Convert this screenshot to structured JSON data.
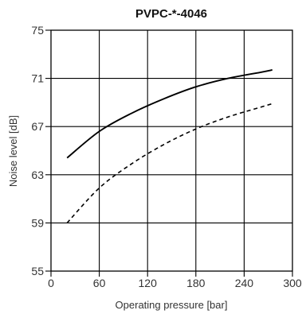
{
  "chart_data": {
    "type": "line",
    "title": "PVPC-*-4046",
    "xlabel": "Operating pressure  [bar]",
    "ylabel": "Noise level [dB]",
    "xlim": [
      0,
      300
    ],
    "ylim": [
      55,
      75
    ],
    "xticks": [
      0,
      60,
      120,
      180,
      240,
      300
    ],
    "yticks": [
      55,
      59,
      63,
      67,
      71,
      75
    ],
    "grid": true,
    "colors": {
      "line": "#000000",
      "grid": "#000000",
      "text": "#333333"
    },
    "series": [
      {
        "style": "solid",
        "x": [
          20,
          60,
          100,
          140,
          180,
          220,
          260,
          275
        ],
        "y": [
          64.4,
          66.6,
          68.1,
          69.3,
          70.3,
          71.0,
          71.5,
          71.7
        ]
      },
      {
        "style": "dashed",
        "x": [
          20,
          60,
          100,
          140,
          180,
          220,
          260,
          275
        ],
        "y": [
          59.0,
          61.9,
          63.9,
          65.5,
          66.8,
          67.8,
          68.6,
          68.9
        ]
      }
    ]
  }
}
